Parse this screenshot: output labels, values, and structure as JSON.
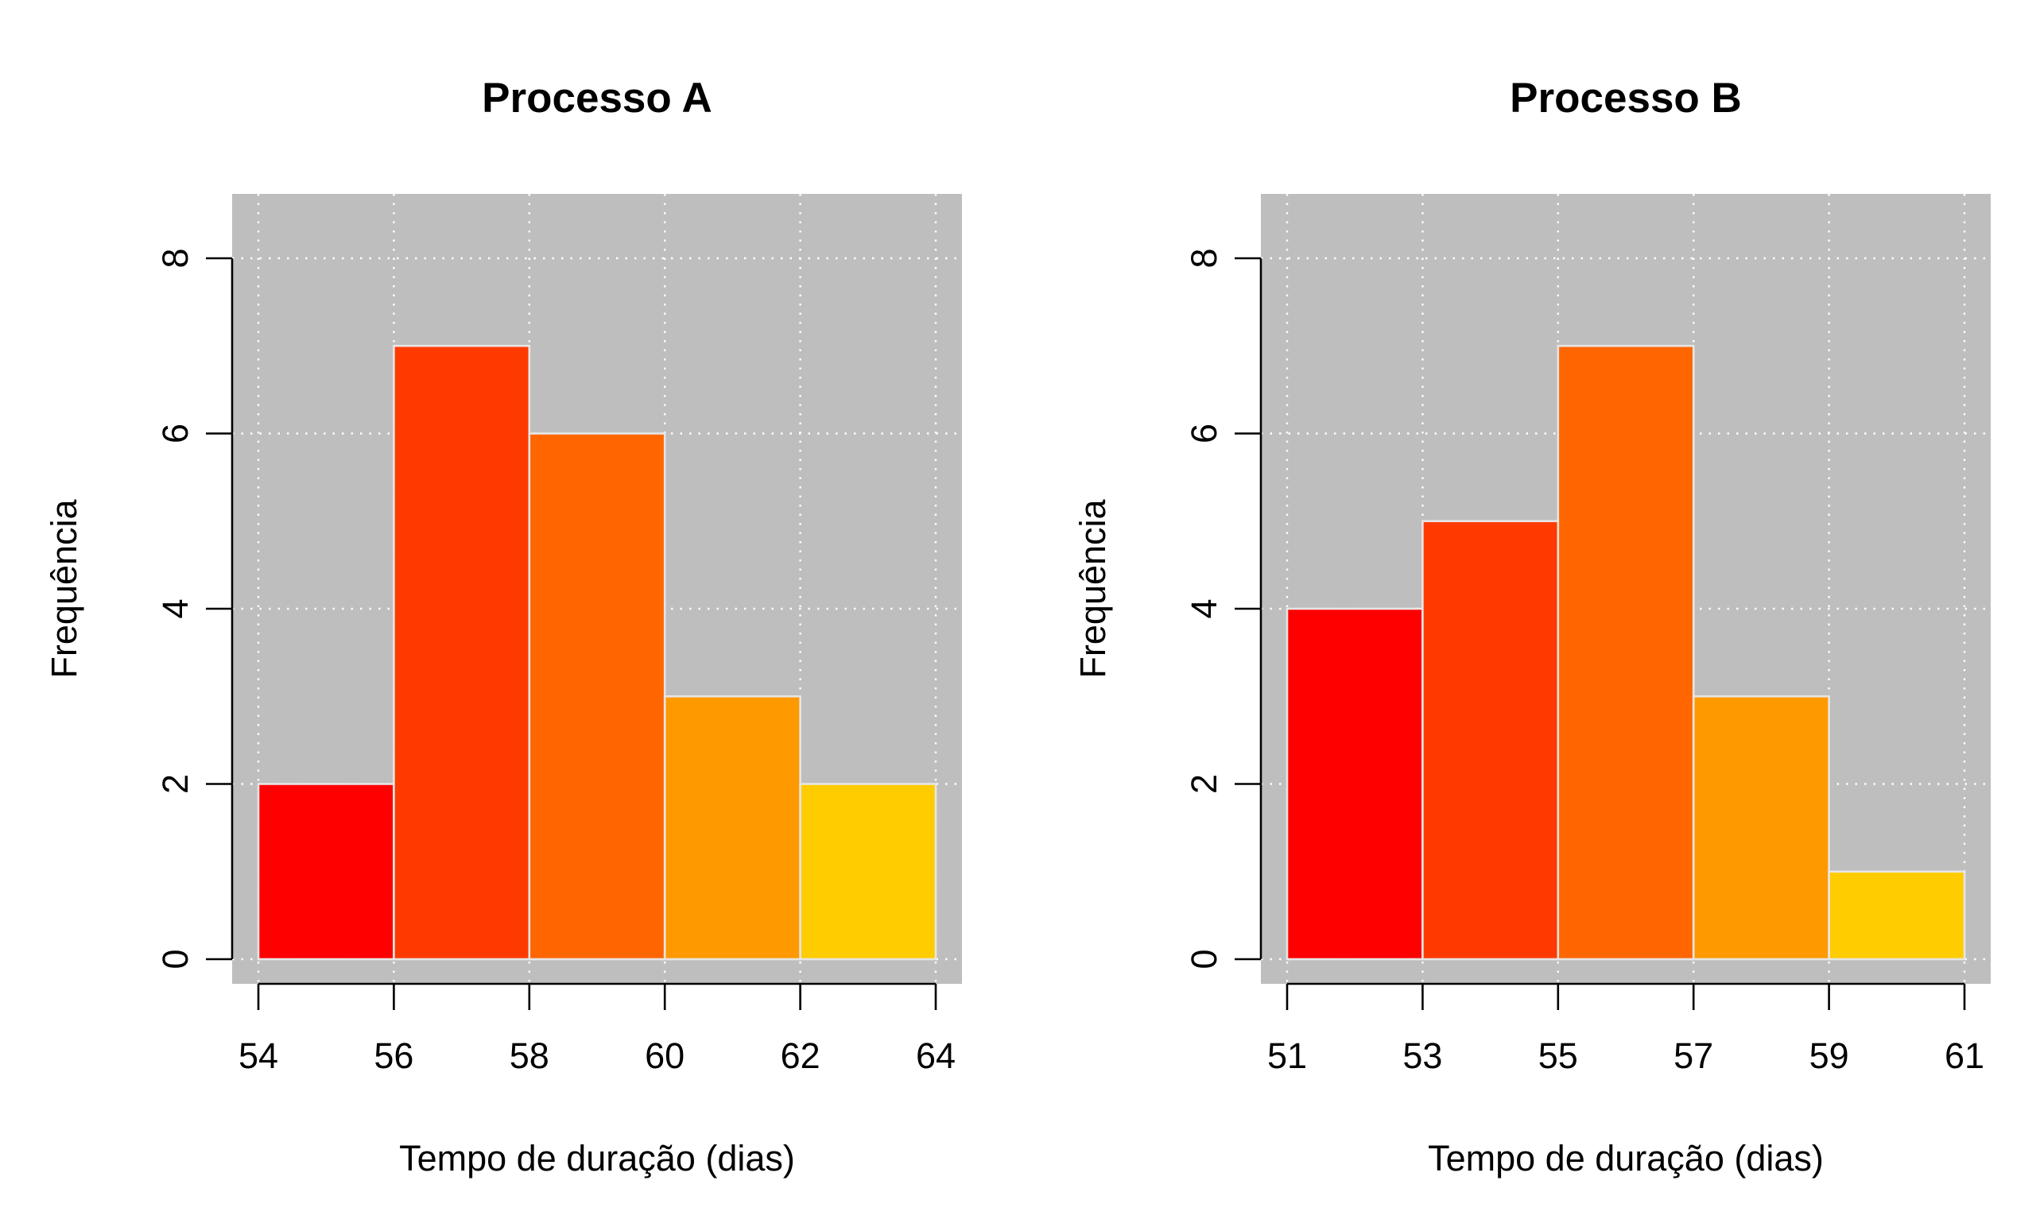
{
  "colors": {
    "panel_background": "#bebebe",
    "grid": "#ffffff",
    "bar_border": "#e6e6e6",
    "axis": "#000000",
    "text": "#000000"
  },
  "chart_data": [
    {
      "type": "bar",
      "subtype": "histogram",
      "title": "Processo A",
      "xlabel": "Tempo de duração (dias)",
      "ylabel": "Frequência",
      "bins": [
        [
          54,
          56
        ],
        [
          56,
          58
        ],
        [
          58,
          60
        ],
        [
          60,
          62
        ],
        [
          62,
          64
        ]
      ],
      "values": [
        2,
        7,
        6,
        3,
        2
      ],
      "bar_colors": [
        "#ff0000",
        "#ff3a00",
        "#ff6600",
        "#ff9900",
        "#ffcc00"
      ],
      "xticks": [
        54,
        56,
        58,
        60,
        62,
        64
      ],
      "xtick_labels": [
        "54",
        "56",
        "58",
        "60",
        "62",
        "64"
      ],
      "yticks": [
        0,
        2,
        4,
        6,
        8
      ],
      "ytick_labels": [
        "0",
        "2",
        "4",
        "6",
        "8"
      ],
      "xlim": [
        53.6,
        64.4
      ],
      "ylim": [
        0,
        8
      ],
      "grid": true,
      "legend": "none"
    },
    {
      "type": "bar",
      "subtype": "histogram",
      "title": "Processo B",
      "xlabel": "Tempo de duração (dias)",
      "ylabel": "Frequência",
      "bins": [
        [
          51,
          53
        ],
        [
          53,
          55
        ],
        [
          55,
          57
        ],
        [
          57,
          59
        ],
        [
          59,
          61
        ]
      ],
      "values": [
        4,
        5,
        7,
        3,
        1
      ],
      "bar_colors": [
        "#ff0000",
        "#ff3a00",
        "#ff6600",
        "#ff9900",
        "#ffcc00"
      ],
      "xticks": [
        51,
        53,
        55,
        57,
        59,
        61
      ],
      "xtick_labels": [
        "51",
        "53",
        "55",
        "57",
        "59",
        "61"
      ],
      "yticks": [
        0,
        2,
        4,
        6,
        8
      ],
      "ytick_labels": [
        "0",
        "2",
        "4",
        "6",
        "8"
      ],
      "xlim": [
        50.6,
        61.4
      ],
      "ylim": [
        0,
        8
      ],
      "grid": true,
      "legend": "none"
    }
  ]
}
